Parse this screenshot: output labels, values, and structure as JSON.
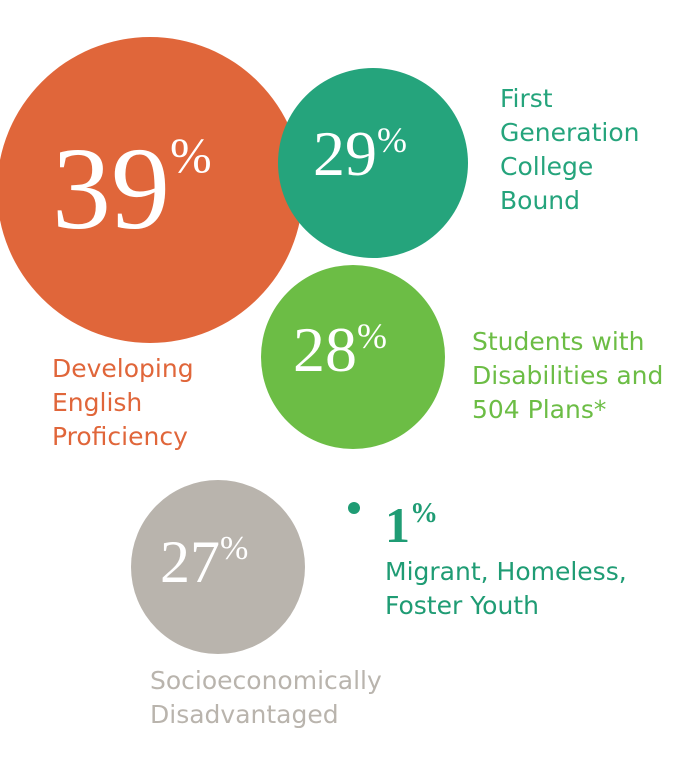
{
  "chart_data": {
    "type": "bubble",
    "categories": [
      "Developing English Proficiency",
      "First Generation College Bound",
      "Students with Disabilities and 504 Plans*",
      "Socioeconomically Disadvantaged",
      "Migrant, Homeless, Foster Youth"
    ],
    "values": [
      39,
      29,
      28,
      27,
      1
    ],
    "unit": "%",
    "colors": [
      "#e0663a",
      "#25a47c",
      "#6cbd45",
      "#b9b4ad",
      "#1f9c74"
    ]
  }
}
